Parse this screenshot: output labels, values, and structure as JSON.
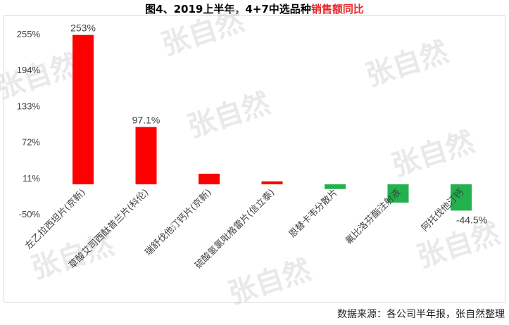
{
  "header": {
    "title_black": "图4、2019上半年，4+7中选品种",
    "title_red": "销售额同比"
  },
  "chart_data": {
    "type": "bar",
    "categories": [
      "左乙拉西坦片(京新)",
      "草酸艾司西酞普兰片(科伦)",
      "瑞舒伐他汀钙片(京新)",
      "硫酸氢氯吡格雷片(信立泰)",
      "恩替卡韦分散片",
      "氟比洛芬酯注射液",
      "阿托伐他汀钙"
    ],
    "values": [
      253,
      97.1,
      18,
      5,
      -8,
      -31,
      -44.5
    ],
    "data_labels": [
      "253%",
      "97.1%",
      "",
      "",
      "",
      "",
      "-44.5%"
    ],
    "yticks": [
      "255%",
      "194%",
      "133%",
      "72%",
      "11%",
      "-50%"
    ],
    "ytick_values": [
      255,
      194,
      133,
      72,
      11,
      -50
    ],
    "ylim": [
      -50,
      255
    ],
    "colors": {
      "positive": "#ff0000",
      "negative": "#22b14c"
    },
    "grid": false,
    "legend": "none"
  },
  "watermark": "张自然",
  "footer": {
    "source": "数据来源：各公司半年报，张自然整理"
  }
}
